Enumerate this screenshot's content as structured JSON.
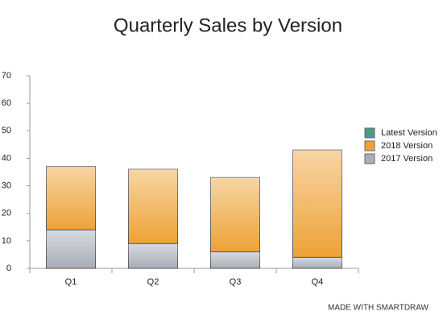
{
  "chart_data": {
    "type": "bar",
    "stacked": true,
    "title": "Quarterly Sales by Version",
    "categories": [
      "Q1",
      "Q2",
      "Q3",
      "Q4"
    ],
    "series": [
      {
        "name": "2017 Version",
        "color": "#a7aeb8",
        "values": [
          14,
          9,
          6,
          4
        ]
      },
      {
        "name": "2018 Version",
        "color": "#eea236",
        "values": [
          23,
          27,
          27,
          39
        ]
      },
      {
        "name": "Latest Version",
        "color": "#4b9a84",
        "values": [
          0,
          0,
          0,
          0
        ]
      }
    ],
    "ylim": [
      0,
      70
    ],
    "yticks": [
      0,
      10,
      20,
      30,
      40,
      50,
      60,
      70
    ],
    "grid": false,
    "legend": "right",
    "footer": "MADE WITH SMARTDRAW"
  }
}
